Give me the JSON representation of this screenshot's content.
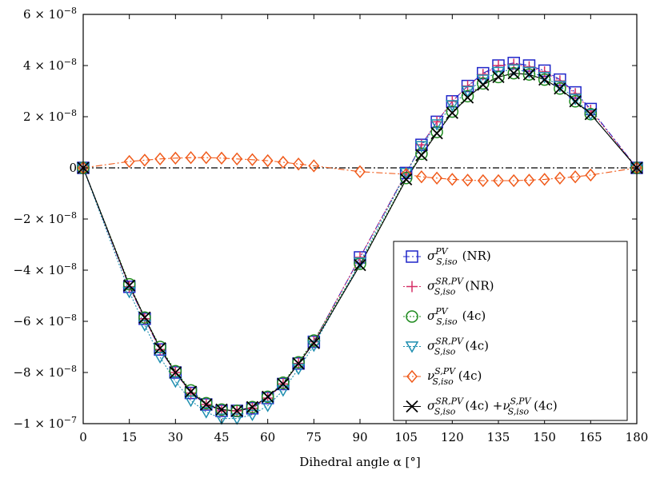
{
  "chart_data": {
    "type": "line",
    "title": "",
    "xlabel": "Dihedral angle α [°]",
    "ylabel": "",
    "xlim": [
      0,
      180
    ],
    "ylim": [
      -1e-07,
      6e-08
    ],
    "grid": false,
    "legend_position": "lower-right",
    "x_ticks": [
      0,
      15,
      30,
      45,
      60,
      75,
      90,
      105,
      120,
      135,
      150,
      165,
      180
    ],
    "x_tick_labels": [
      "0",
      "15",
      "30",
      "45",
      "60",
      "75",
      "90",
      "105",
      "120",
      "135",
      "150",
      "165",
      "180"
    ],
    "y_ticks": [
      6e-08,
      4e-08,
      2e-08,
      0,
      -2e-08,
      -4e-08,
      -6e-08,
      -8e-08,
      -1e-07
    ],
    "y_tick_labels": [
      {
        "mant": "6 × 10",
        "exp": "−8"
      },
      {
        "mant": "4 × 10",
        "exp": "−8"
      },
      {
        "mant": "2 × 10",
        "exp": "−8"
      },
      {
        "mant": "0",
        "exp": ""
      },
      {
        "mant": "−2 × 10",
        "exp": "−8"
      },
      {
        "mant": "−4 × 10",
        "exp": "−8"
      },
      {
        "mant": "−6 × 10",
        "exp": "−8"
      },
      {
        "mant": "−8 × 10",
        "exp": "−8"
      },
      {
        "mant": "−1 × 10",
        "exp": "−7"
      }
    ],
    "x": [
      0,
      15,
      20,
      25,
      30,
      35,
      40,
      45,
      50,
      55,
      60,
      65,
      70,
      75,
      90,
      105,
      110,
      115,
      120,
      125,
      130,
      135,
      140,
      145,
      150,
      155,
      160,
      165,
      180
    ],
    "series": [
      {
        "legend": {
          "sym": "σ",
          "sup": "PV",
          "sub": "S,iso",
          "suffix": "(NR)"
        },
        "marker": "square",
        "color": "#1f25c9",
        "dash": "8,3,2,3",
        "values": [
          0,
          -4.65e-08,
          -5.9e-08,
          -7.1e-08,
          -8e-08,
          -8.8e-08,
          -9.25e-08,
          -9.5e-08,
          -9.5e-08,
          -9.4e-08,
          -9e-08,
          -8.45e-08,
          -7.65e-08,
          -6.8e-08,
          -3.5e-08,
          -2e-09,
          9e-09,
          1.8e-08,
          2.6e-08,
          3.2e-08,
          3.7e-08,
          4e-08,
          4.1e-08,
          4e-08,
          3.8e-08,
          3.45e-08,
          2.95e-08,
          2.3e-08,
          0
        ]
      },
      {
        "legend": {
          "sym": "σ",
          "sup": "SR,PV",
          "sub": "S,iso",
          "suffix": "(NR)"
        },
        "marker": "plus",
        "color": "#d62f66",
        "dash": "2,2",
        "values": [
          0,
          -4.65e-08,
          -5.9e-08,
          -7.1e-08,
          -8e-08,
          -8.8e-08,
          -9.25e-08,
          -9.5e-08,
          -9.5e-08,
          -9.4e-08,
          -9e-08,
          -8.45e-08,
          -7.65e-08,
          -6.8e-08,
          -3.5e-08,
          -2e-09,
          9e-09,
          1.8e-08,
          2.6e-08,
          3.2e-08,
          3.65e-08,
          4e-08,
          4.05e-08,
          3.95e-08,
          3.75e-08,
          3.4e-08,
          2.9e-08,
          2.25e-08,
          0
        ]
      },
      {
        "legend": {
          "sym": "σ",
          "sup": "PV",
          "sub": "S,iso",
          "suffix": "(4c)"
        },
        "marker": "circle",
        "color": "#1e8a1e",
        "dash": "2,2",
        "values": [
          0,
          -4.55e-08,
          -5.85e-08,
          -7e-08,
          -7.95e-08,
          -8.7e-08,
          -9.2e-08,
          -9.45e-08,
          -9.5e-08,
          -9.35e-08,
          -8.95e-08,
          -8.4e-08,
          -7.6e-08,
          -6.75e-08,
          -3.75e-08,
          -4e-09,
          5.5e-09,
          1.4e-08,
          2.2e-08,
          2.8e-08,
          3.3e-08,
          3.55e-08,
          3.7e-08,
          3.65e-08,
          3.45e-08,
          3.1e-08,
          2.6e-08,
          2.1e-08,
          0
        ]
      },
      {
        "legend": {
          "sym": "σ",
          "sup": "SR,PV",
          "sub": "S,iso",
          "suffix": "(4c)"
        },
        "marker": "triangle-down",
        "color": "#1f8fb0",
        "dash": "2,2",
        "values": [
          0,
          -4.85e-08,
          -6.15e-08,
          -7.4e-08,
          -8.35e-08,
          -9.1e-08,
          -9.55e-08,
          -9.8e-08,
          -9.8e-08,
          -9.65e-08,
          -9.3e-08,
          -8.7e-08,
          -7.85e-08,
          -6.95e-08,
          -3.7e-08,
          -2e-09,
          8.5e-09,
          1.7e-08,
          2.45e-08,
          3e-08,
          3.45e-08,
          3.75e-08,
          3.85e-08,
          3.75e-08,
          3.55e-08,
          3.2e-08,
          2.7e-08,
          2.1e-08,
          0
        ]
      },
      {
        "legend": {
          "sym": "ν",
          "sup": "S,PV",
          "sub": "S,iso",
          "suffix": "(4c)"
        },
        "marker": "diamond",
        "color": "#f05a1a",
        "dash": "8,3,2,3",
        "values": [
          0,
          2.5e-09,
          3e-09,
          3.5e-09,
          3.8e-09,
          4e-09,
          4e-09,
          3.8e-09,
          3.5e-09,
          3.2e-09,
          2.8e-09,
          2.2e-09,
          1.5e-09,
          8e-10,
          -1.5e-09,
          -2.5e-09,
          -3.5e-09,
          -4e-09,
          -4.5e-09,
          -4.8e-09,
          -5e-09,
          -5e-09,
          -5e-09,
          -4.8e-09,
          -4.5e-09,
          -4e-09,
          -3.5e-09,
          -2.8e-09,
          0
        ]
      },
      {
        "legend": {
          "sym": "σ",
          "sup": "SR,PV",
          "sub": "S,iso",
          "suffix": "(4c) +",
          "sym2": "ν",
          "sup2": "S,PV",
          "sub2": "S,iso",
          "suffix2": "(4c)"
        },
        "marker": "x",
        "color": "#000000",
        "dash": "",
        "values": [
          0,
          -4.6e-08,
          -5.85e-08,
          -7.05e-08,
          -8e-08,
          -8.75e-08,
          -9.25e-08,
          -9.45e-08,
          -9.5e-08,
          -9.35e-08,
          -8.95e-08,
          -8.45e-08,
          -7.65e-08,
          -6.85e-08,
          -3.8e-08,
          -4.5e-09,
          5e-09,
          1.35e-08,
          2.15e-08,
          2.75e-08,
          3.25e-08,
          3.55e-08,
          3.7e-08,
          3.65e-08,
          3.45e-08,
          3.1e-08,
          2.6e-08,
          2.1e-08,
          0
        ]
      }
    ],
    "reference_line": {
      "y": 0,
      "color": "#000000",
      "dash": "8,3,2,3"
    }
  }
}
